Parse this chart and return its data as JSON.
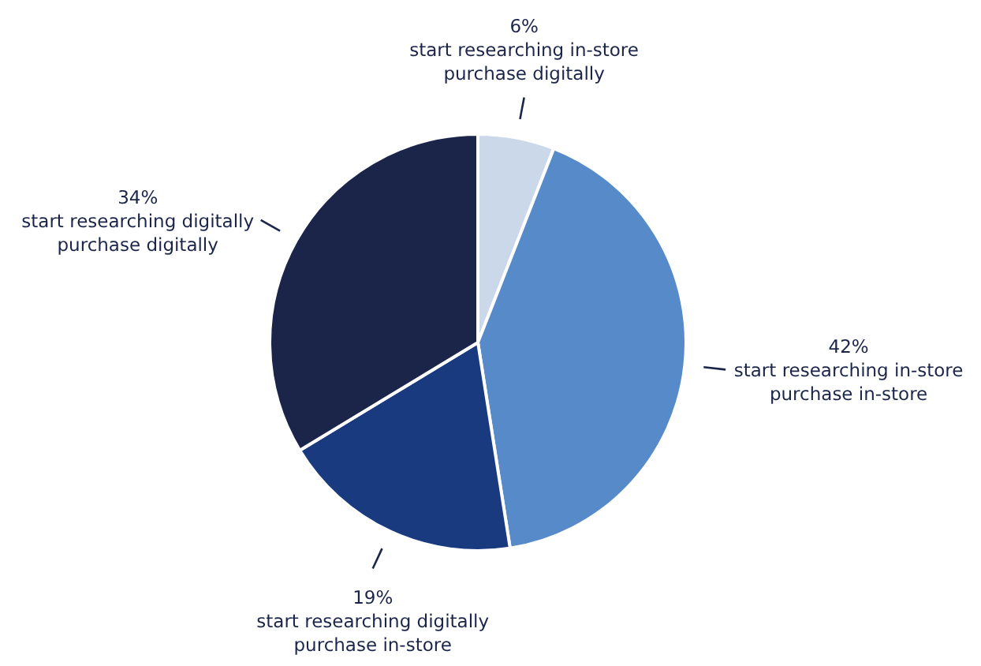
{
  "chart_data": {
    "type": "pie",
    "categories": [
      "start researching in-store purchase digitally",
      "start researching in-store purchase in-store",
      "start researching digitally purchase in-store",
      "start researching digitally purchase digitally"
    ],
    "values": [
      6,
      42,
      19,
      34
    ],
    "value_labels": [
      "6%",
      "42%",
      "19%",
      "34%"
    ],
    "colors": [
      "#cbd8ea",
      "#578ac8",
      "#1a3a80",
      "#1b2549"
    ]
  }
}
